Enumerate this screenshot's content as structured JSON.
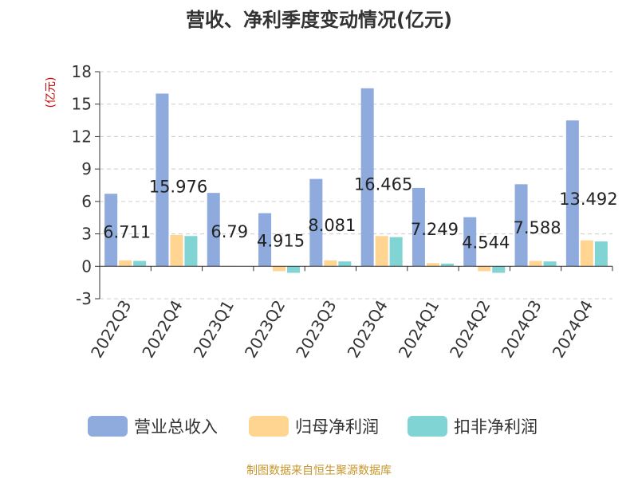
{
  "chart_data": {
    "type": "bar",
    "title": "营收、净利季度变动情况(亿元)",
    "ylabel": "(亿元)",
    "ylim": [
      -3,
      18
    ],
    "yticks": [
      -3,
      0,
      3,
      6,
      9,
      12,
      15,
      18
    ],
    "grid": true,
    "legend_position": "bottom",
    "categories": [
      "2022Q3",
      "2022Q4",
      "2023Q1",
      "2023Q2",
      "2023Q3",
      "2023Q4",
      "2024Q1",
      "2024Q2",
      "2024Q3",
      "2024Q4"
    ],
    "series": [
      {
        "name": "营业总收入",
        "color": "#8faadc",
        "values": [
          6.711,
          15.976,
          6.79,
          4.915,
          8.081,
          16.465,
          7.249,
          4.544,
          7.588,
          13.492
        ],
        "data_labels": [
          "6.711",
          "15.976",
          "6.79",
          "4.915",
          "8.081",
          "16.465",
          "7.249",
          "4.544",
          "7.588",
          "13.492"
        ]
      },
      {
        "name": "归母净利润",
        "color": "#ffd591",
        "values": [
          0.55,
          2.9,
          0.04,
          -0.45,
          0.55,
          2.8,
          0.3,
          -0.45,
          0.5,
          2.4
        ]
      },
      {
        "name": "扣非净利润",
        "color": "#80d4d4",
        "values": [
          0.5,
          2.8,
          0.02,
          -0.6,
          0.45,
          2.7,
          0.25,
          -0.6,
          0.45,
          2.3
        ]
      }
    ],
    "source_note": "制图数据来自恒生聚源数据库"
  }
}
